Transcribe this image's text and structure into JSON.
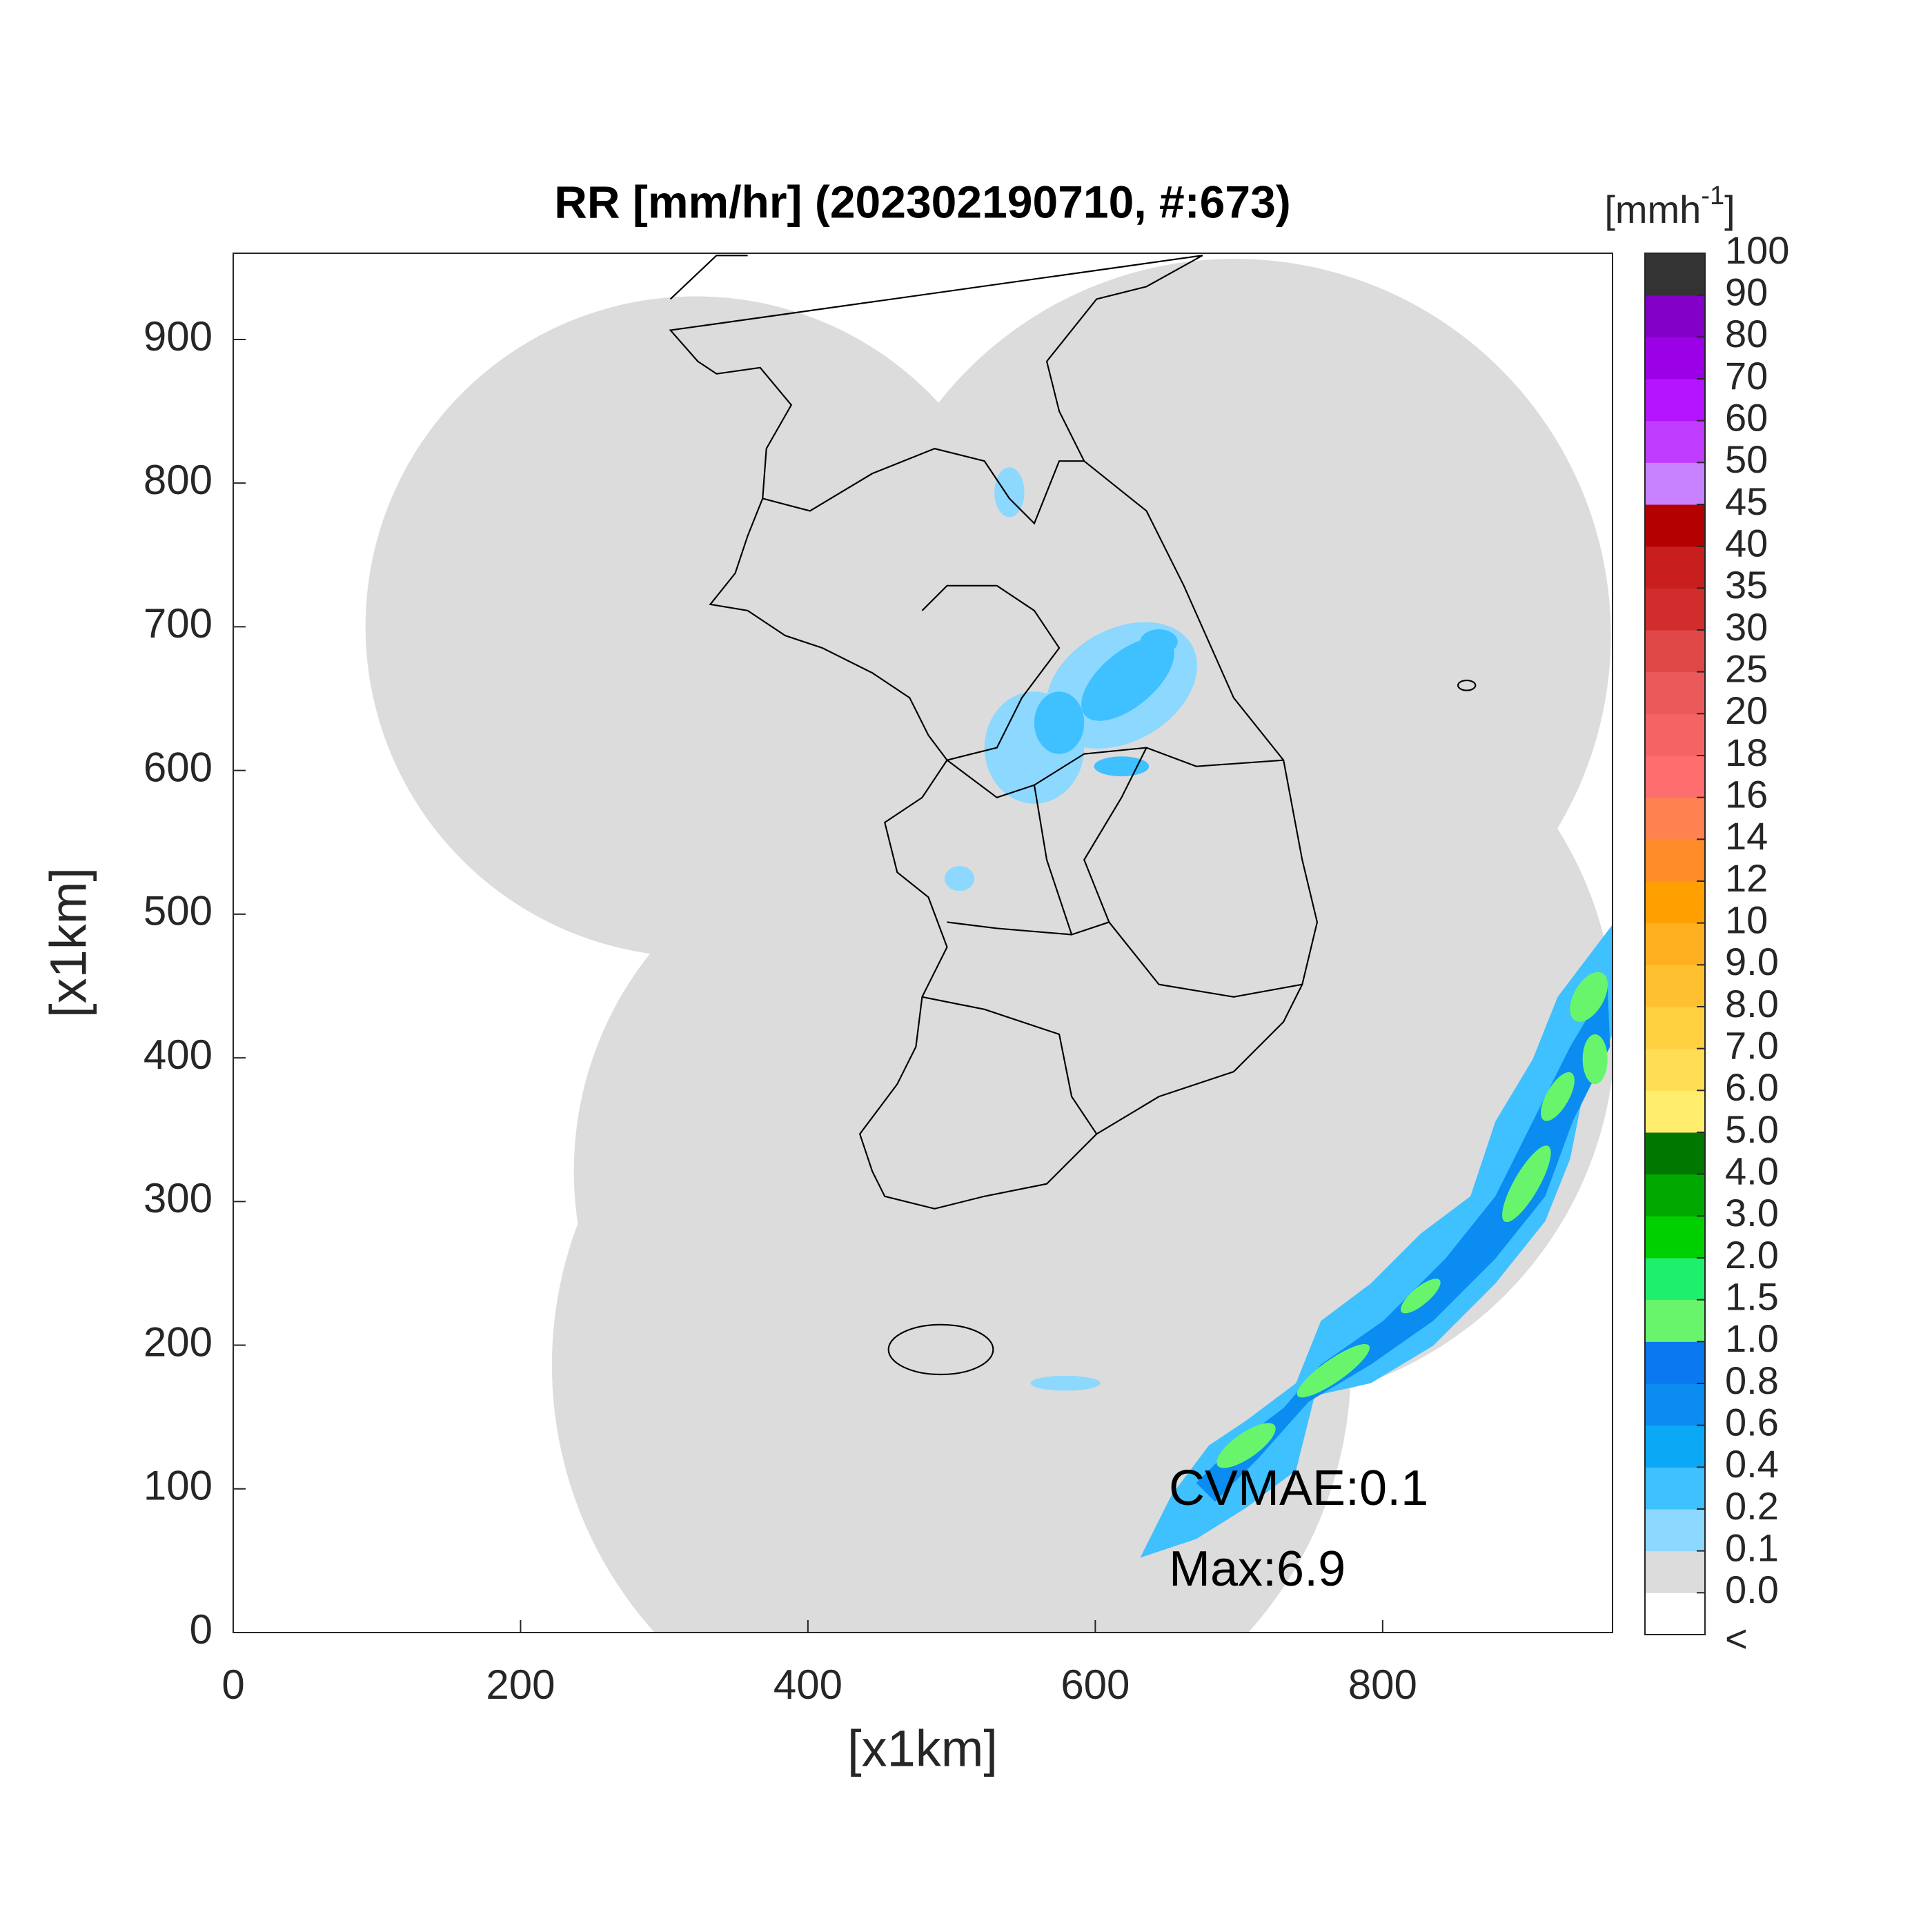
{
  "chart_data": {
    "type": "map",
    "title": "RR [mm/hr] (202302190710, #:673)",
    "xlabel": "[x1km]",
    "ylabel": "[x1km]",
    "xlim": [
      0,
      960
    ],
    "ylim": [
      0,
      960
    ],
    "xticks": [
      0,
      200,
      400,
      600,
      800
    ],
    "yticks": [
      0,
      100,
      200,
      300,
      400,
      500,
      600,
      700,
      800,
      900
    ],
    "grid": false,
    "annotations": [
      "CVMAE:0.1",
      "Max:6.9"
    ],
    "colorbar": {
      "label": [
        "[mmh",
        "-1",
        "]"
      ],
      "below_label": "<",
      "ticks": [
        {
          "value": 0,
          "label": "0.0"
        },
        0.1,
        0.2,
        0.4,
        0.6,
        0.8,
        {
          "value": 1,
          "label": "1.0"
        },
        1.5,
        {
          "value": 2,
          "label": "2.0"
        },
        {
          "value": 3,
          "label": "3.0"
        },
        {
          "value": 4,
          "label": "4.0"
        },
        {
          "value": 5,
          "label": "5.0"
        },
        {
          "value": 6,
          "label": "6.0"
        },
        {
          "value": 7,
          "label": "7.0"
        },
        {
          "value": 8,
          "label": "8.0"
        },
        {
          "value": 9,
          "label": "9.0"
        },
        10,
        12,
        14,
        16,
        18,
        20,
        25,
        30,
        35,
        40,
        45,
        50,
        60,
        70,
        80,
        90,
        100
      ],
      "colors": [
        "#ffffff",
        "#dcdcdc",
        "#8cd8ff",
        "#3fc0ff",
        "#0aa8f5",
        "#0a8cf0",
        "#0a78f0",
        "#69f56b",
        "#1ef06e",
        "#00d000",
        "#00a800",
        "#007800",
        "#ffee6e",
        "#ffdd55",
        "#ffd040",
        "#ffc030",
        "#ffb020",
        "#ffa000",
        "#ff8c28",
        "#ff8250",
        "#ff6e6e",
        "#f56464",
        "#eb5a5a",
        "#e04848",
        "#d22d2d",
        "#c81e1e",
        "#b40000",
        "#c882ff",
        "#c03cff",
        "#b414ff",
        "#9b00e6",
        "#8200c8",
        "#333333"
      ]
    }
  }
}
